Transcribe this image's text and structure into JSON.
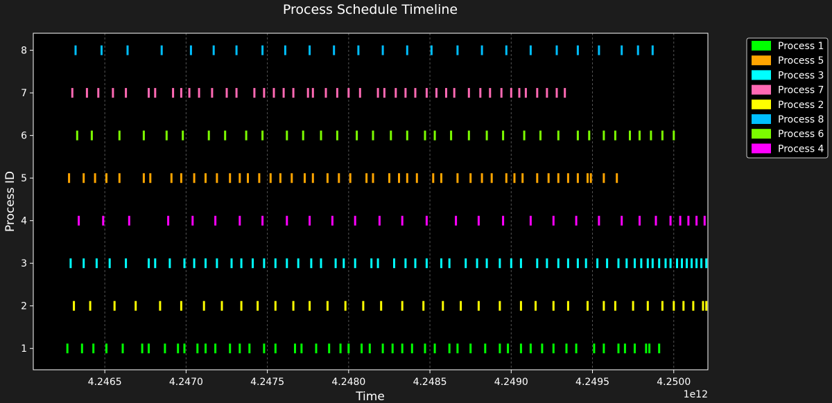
{
  "chart_data": {
    "type": "timeline",
    "title": "Process Schedule Timeline",
    "xlabel": "Time",
    "ylabel": "Process ID",
    "x_offset_label": "1e12",
    "xlim": [
      4.24606,
      4.25021
    ],
    "ylim": [
      0.5,
      8.4
    ],
    "x_ticks": [
      4.2465,
      4.247,
      4.2475,
      4.248,
      4.2485,
      4.249,
      4.2495,
      4.25
    ],
    "x_tick_labels": [
      "4.2465",
      "4.2470",
      "4.2475",
      "4.2480",
      "4.2485",
      "4.2490",
      "4.2495",
      "4.2500"
    ],
    "y_ticks": [
      1,
      2,
      3,
      4,
      5,
      6,
      7,
      8
    ],
    "y_tick_labels": [
      "1",
      "2",
      "3",
      "4",
      "5",
      "6",
      "7",
      "8"
    ],
    "grid": "vertical dashed",
    "legend_position": "outside top-right",
    "background": "#000000",
    "series": [
      {
        "name": "Process 1",
        "process_id": 1,
        "color": "#00ff00",
        "events": [
          4.24627,
          4.24636,
          4.24643,
          4.24651,
          4.24661,
          4.24673,
          4.24677,
          4.24687,
          4.24695,
          4.24699,
          4.24707,
          4.24712,
          4.24718,
          4.24727,
          4.24733,
          4.24739,
          4.24748,
          4.24755,
          4.24767,
          4.24771,
          4.2478,
          4.24788,
          4.24795,
          4.248,
          4.24808,
          4.24813,
          4.24821,
          4.24827,
          4.24833,
          4.24839,
          4.24847,
          4.24853,
          4.24862,
          4.24867,
          4.24875,
          4.24884,
          4.24893,
          4.24898,
          4.24906,
          4.24912,
          4.24919,
          4.24926,
          4.24934,
          4.2494,
          4.24951,
          4.24957,
          4.24966,
          4.2497,
          4.24976,
          4.24983,
          4.24985,
          4.24991
        ]
      },
      {
        "name": "Process 5",
        "process_id": 5,
        "color": "#ffa500",
        "events": [
          4.24628,
          4.24637,
          4.24644,
          4.24651,
          4.24659,
          4.24674,
          4.24678,
          4.24691,
          4.24697,
          4.24705,
          4.24712,
          4.24719,
          4.24727,
          4.24733,
          4.24738,
          4.24745,
          4.24752,
          4.24758,
          4.24765,
          4.24773,
          4.24778,
          4.24787,
          4.24794,
          4.24801,
          4.24811,
          4.24815,
          4.24825,
          4.24831,
          4.24836,
          4.24842,
          4.24852,
          4.24857,
          4.24867,
          4.24875,
          4.24882,
          4.24888,
          4.24897,
          4.24902,
          4.24907,
          4.24916,
          4.24923,
          4.24929,
          4.24935,
          4.24941,
          4.24947,
          4.24949,
          4.24957,
          4.24965
        ]
      },
      {
        "name": "Process 3",
        "process_id": 3,
        "color": "#00ffff",
        "events": [
          4.24629,
          4.24637,
          4.24645,
          4.24653,
          4.24663,
          4.24677,
          4.24681,
          4.2469,
          4.24699,
          4.24705,
          4.24712,
          4.24719,
          4.24728,
          4.24734,
          4.24741,
          4.24748,
          4.24755,
          4.24762,
          4.24769,
          4.24777,
          4.24783,
          4.24792,
          4.24797,
          4.24804,
          4.24814,
          4.24818,
          4.24828,
          4.24835,
          4.24841,
          4.24848,
          4.24857,
          4.24862,
          4.24872,
          4.24879,
          4.24885,
          4.24893,
          4.249,
          4.24906,
          4.24916,
          4.24922,
          4.24929,
          4.24935,
          4.24941,
          4.24946,
          4.24953,
          4.24959,
          4.24966,
          4.24971,
          4.24976,
          4.2498,
          4.24984,
          4.24987,
          4.24991,
          4.24995,
          4.24998,
          4.25002,
          4.25005,
          4.25008,
          4.25011,
          4.25014,
          4.25017,
          4.2502
        ]
      },
      {
        "name": "Process 7",
        "process_id": 7,
        "color": "#ff69b4",
        "events": [
          4.2463,
          4.24639,
          4.24646,
          4.24655,
          4.24663,
          4.24677,
          4.24681,
          4.24692,
          4.24697,
          4.24702,
          4.24708,
          4.24716,
          4.24725,
          4.24731,
          4.24742,
          4.24748,
          4.24754,
          4.2476,
          4.24766,
          4.24775,
          4.24778,
          4.24786,
          4.24793,
          4.248,
          4.24807,
          4.24818,
          4.24822,
          4.24829,
          4.24835,
          4.24841,
          4.24848,
          4.24854,
          4.2486,
          4.24865,
          4.24874,
          4.24881,
          4.24887,
          4.24894,
          4.249,
          4.24905,
          4.24909,
          4.24916,
          4.24922,
          4.24928,
          4.24933
        ]
      },
      {
        "name": "Process 2",
        "process_id": 2,
        "color": "#ffff00",
        "events": [
          4.24631,
          4.24641,
          4.24656,
          4.24669,
          4.24684,
          4.24697,
          4.24711,
          4.24722,
          4.24734,
          4.24744,
          4.24755,
          4.24766,
          4.24776,
          4.24787,
          4.24798,
          4.24809,
          4.2482,
          4.24833,
          4.24846,
          4.24858,
          4.24869,
          4.2488,
          4.24893,
          4.24906,
          4.24915,
          4.24926,
          4.24935,
          4.24947,
          4.24957,
          4.24964,
          4.24975,
          4.24984,
          4.24993,
          4.25,
          4.25006,
          4.25012,
          4.25018,
          4.2502
        ]
      },
      {
        "name": "Process 8",
        "process_id": 8,
        "color": "#00bfff",
        "events": [
          4.24632,
          4.24648,
          4.24664,
          4.24685,
          4.24703,
          4.24717,
          4.24731,
          4.24747,
          4.24761,
          4.24776,
          4.24791,
          4.24806,
          4.24821,
          4.24836,
          4.24851,
          4.24867,
          4.24882,
          4.24897,
          4.24912,
          4.24928,
          4.24941,
          4.24954,
          4.24968,
          4.24978,
          4.24987
        ]
      },
      {
        "name": "Process 6",
        "process_id": 6,
        "color": "#7cfc00",
        "events": [
          4.24633,
          4.24642,
          4.24659,
          4.24674,
          4.24688,
          4.24698,
          4.24714,
          4.24724,
          4.24737,
          4.24747,
          4.24762,
          4.24772,
          4.24783,
          4.24793,
          4.24805,
          4.24815,
          4.24826,
          4.24836,
          4.24847,
          4.24853,
          4.24863,
          4.24874,
          4.24885,
          4.24895,
          4.24908,
          4.24918,
          4.24929,
          4.24941,
          4.24948,
          4.24957,
          4.24964,
          4.24973,
          4.24979,
          4.24986,
          4.24993,
          4.25
        ]
      },
      {
        "name": "Process 4",
        "process_id": 4,
        "color": "#ff00ff",
        "events": [
          4.24634,
          4.24649,
          4.24665,
          4.24689,
          4.24704,
          4.24718,
          4.24733,
          4.24747,
          4.24762,
          4.24776,
          4.2479,
          4.24804,
          4.24819,
          4.24833,
          4.24848,
          4.24866,
          4.2488,
          4.24895,
          4.24912,
          4.24926,
          4.2494,
          4.24954,
          4.24968,
          4.24979,
          4.24989,
          4.24998,
          4.25004,
          4.25009,
          4.25014,
          4.25019
        ]
      }
    ]
  }
}
